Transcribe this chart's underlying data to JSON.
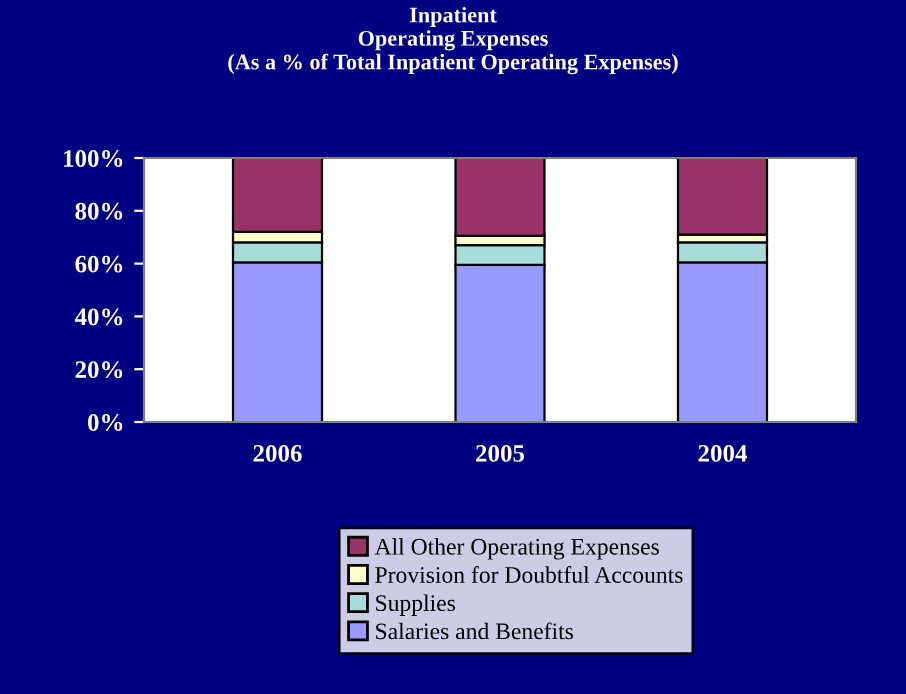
{
  "chart_data": {
    "type": "bar",
    "stacked": true,
    "title": "Inpatient\nOperating Expenses\n(As a % of Total Inpatient Operating Expenses)",
    "categories": [
      "2006",
      "2005",
      "2004"
    ],
    "series": [
      {
        "name": "Salaries and Benefits",
        "color": "#9999ff",
        "values": [
          60.5,
          59.5,
          60.5
        ]
      },
      {
        "name": "Supplies",
        "color": "#a8dcd8",
        "values": [
          7.5,
          7.5,
          7.5
        ]
      },
      {
        "name": "Provision for Doubtful Accounts",
        "color": "#ffffcc",
        "values": [
          4,
          3.5,
          3
        ]
      },
      {
        "name": "All Other Operating Expenses",
        "color": "#993366",
        "values": [
          28,
          29.5,
          29
        ]
      }
    ],
    "ylim": [
      0,
      100
    ],
    "yticks": [
      {
        "value": 0,
        "label": "0%"
      },
      {
        "value": 20,
        "label": "20%"
      },
      {
        "value": 40,
        "label": "40%"
      },
      {
        "value": 60,
        "label": "60%"
      },
      {
        "value": 80,
        "label": "80%"
      },
      {
        "value": 100,
        "label": "100%"
      }
    ],
    "grid": false,
    "legend": "bottom"
  }
}
